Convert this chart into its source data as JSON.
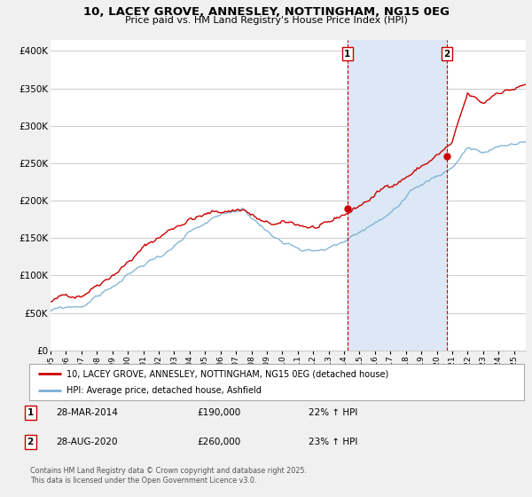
{
  "title": "10, LACEY GROVE, ANNESLEY, NOTTINGHAM, NG15 0EG",
  "subtitle": "Price paid vs. HM Land Registry's House Price Index (HPI)",
  "ylabel_ticks": [
    "£0",
    "£50K",
    "£100K",
    "£150K",
    "£200K",
    "£250K",
    "£300K",
    "£350K",
    "£400K"
  ],
  "ytick_values": [
    0,
    50000,
    100000,
    150000,
    200000,
    250000,
    300000,
    350000,
    400000
  ],
  "ylim": [
    0,
    415000
  ],
  "xlim_start": 1995.0,
  "xlim_end": 2025.75,
  "marker1_x": 2014.22,
  "marker2_x": 2020.65,
  "marker1_y": 190000,
  "marker2_y": 260000,
  "marker1_label": "1",
  "marker2_label": "2",
  "marker1_date": "28-MAR-2014",
  "marker1_price": "£190,000",
  "marker1_hpi": "22% ↑ HPI",
  "marker2_date": "28-AUG-2020",
  "marker2_price": "£260,000",
  "marker2_hpi": "23% ↑ HPI",
  "legend_line1": "10, LACEY GROVE, ANNESLEY, NOTTINGHAM, NG15 0EG (detached house)",
  "legend_line2": "HPI: Average price, detached house, Ashfield",
  "footer": "Contains HM Land Registry data © Crown copyright and database right 2025.\nThis data is licensed under the Open Government Licence v3.0.",
  "line1_color": "#cc0000",
  "line2_color": "#7ab0d4",
  "background_color": "#f0f0f0",
  "plot_bg_color": "#ffffff",
  "grid_color": "#cccccc",
  "vline_color": "#cc0000",
  "span_color": "#dce8f5"
}
